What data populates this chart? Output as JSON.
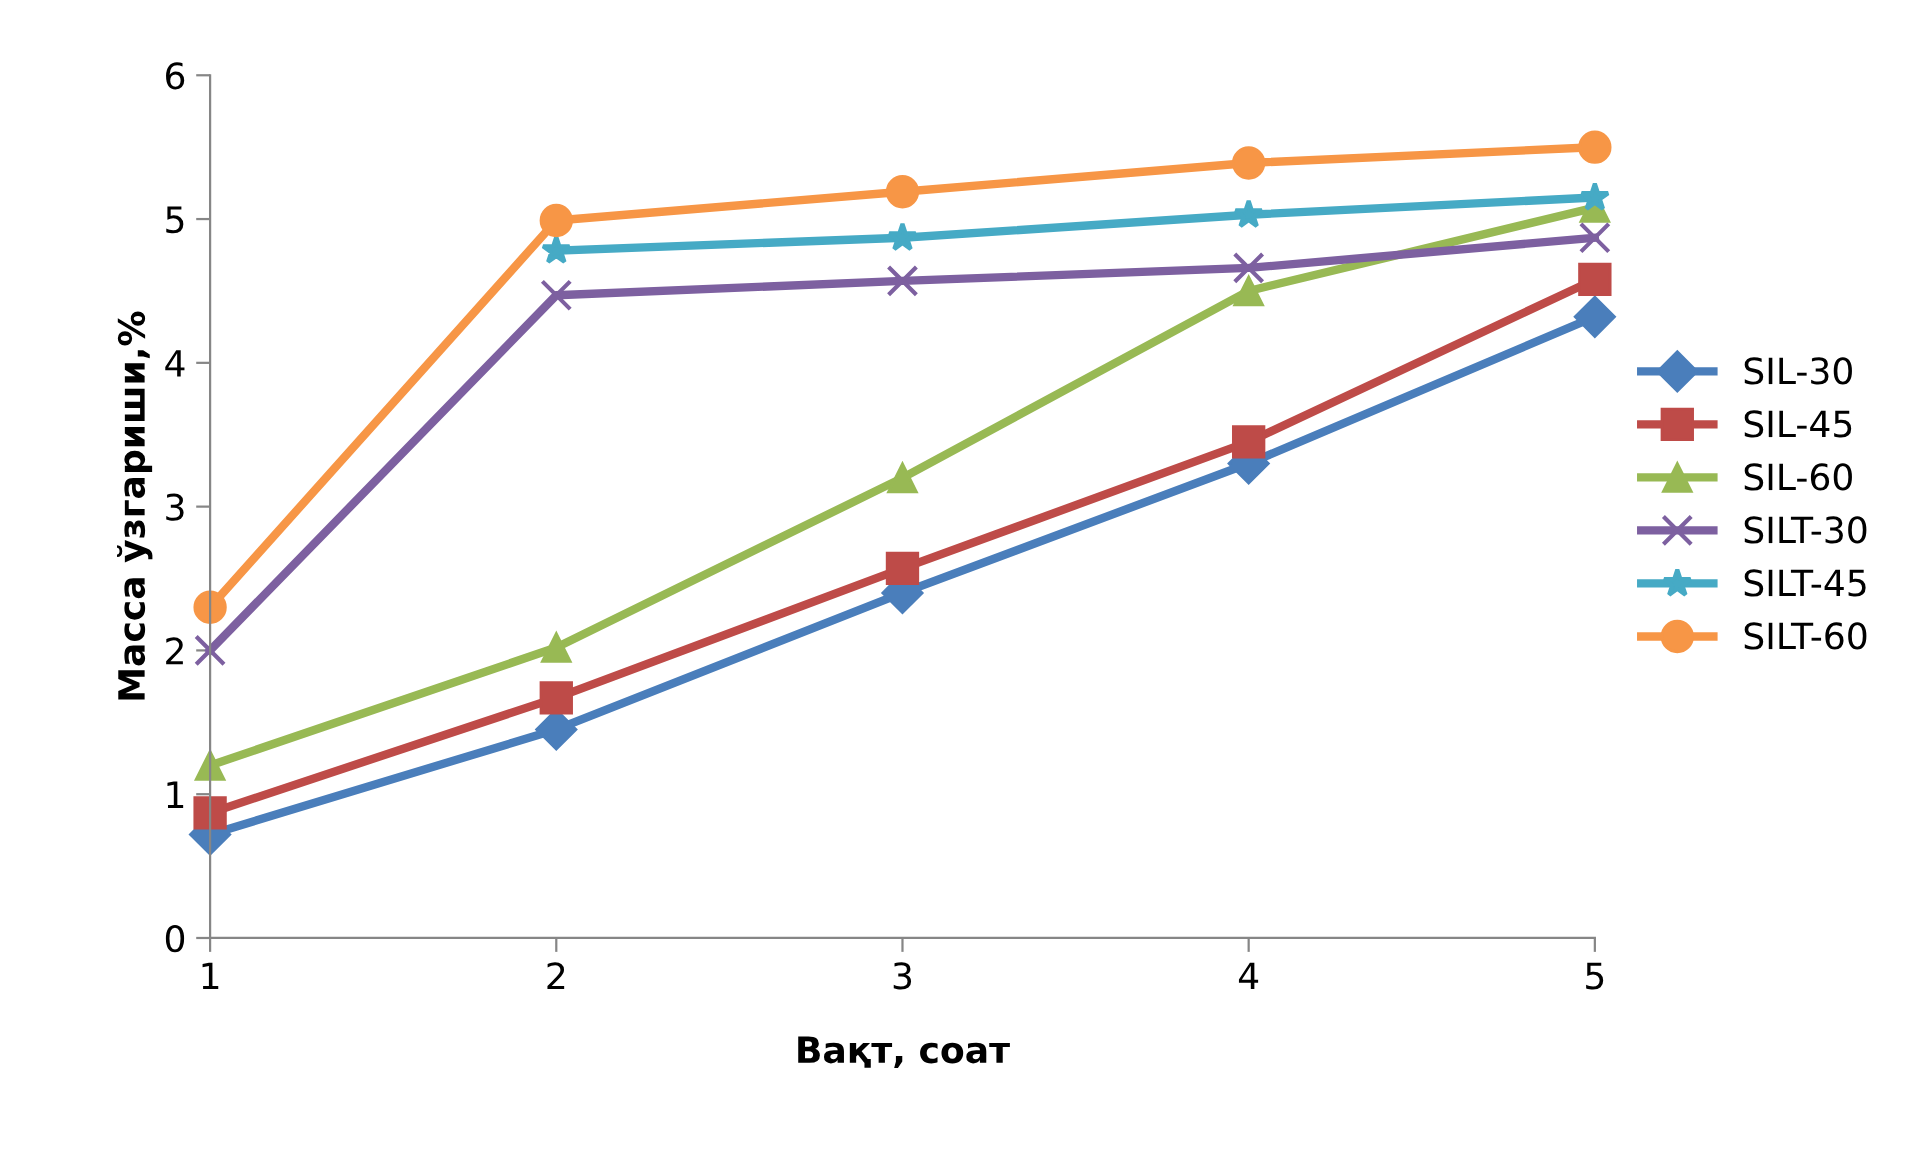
{
  "chart_data": {
    "type": "line",
    "xlabel": "Вақт, соат",
    "ylabel": "Масса ўзгариши,%",
    "x": [
      1,
      2,
      3,
      4,
      5
    ],
    "xlim": [
      1,
      5
    ],
    "xticks": [
      1,
      2,
      3,
      4,
      5
    ],
    "ylim": [
      0,
      6
    ],
    "yticks": [
      0,
      1,
      2,
      3,
      4,
      5,
      6
    ],
    "grid": false,
    "legend": "right",
    "line_style": "solid",
    "series": [
      {
        "name": "SIL-30",
        "color": "#4a7ebb",
        "marker": "diamond",
        "values": [
          0.72,
          1.45,
          2.4,
          3.3,
          4.32
        ]
      },
      {
        "name": "SIL-45",
        "color": "#be4b48",
        "marker": "square",
        "values": [
          0.87,
          1.67,
          2.57,
          3.45,
          4.58
        ]
      },
      {
        "name": "SIL-60",
        "color": "#98b954",
        "marker": "triangle",
        "values": [
          1.2,
          2.02,
          3.2,
          4.5,
          5.08
        ]
      },
      {
        "name": "SILT-30",
        "color": "#7d60a0",
        "marker": "cross",
        "values": [
          2.0,
          4.47,
          4.57,
          4.66,
          4.87
        ]
      },
      {
        "name": "SILT-45",
        "color": "#46aac5",
        "marker": "star",
        "values": [
          null,
          4.78,
          4.87,
          5.03,
          5.15
        ]
      },
      {
        "name": "SILT-60",
        "color": "#f79646",
        "marker": "circle",
        "values": [
          2.3,
          4.99,
          5.19,
          5.39,
          5.5
        ]
      }
    ]
  }
}
